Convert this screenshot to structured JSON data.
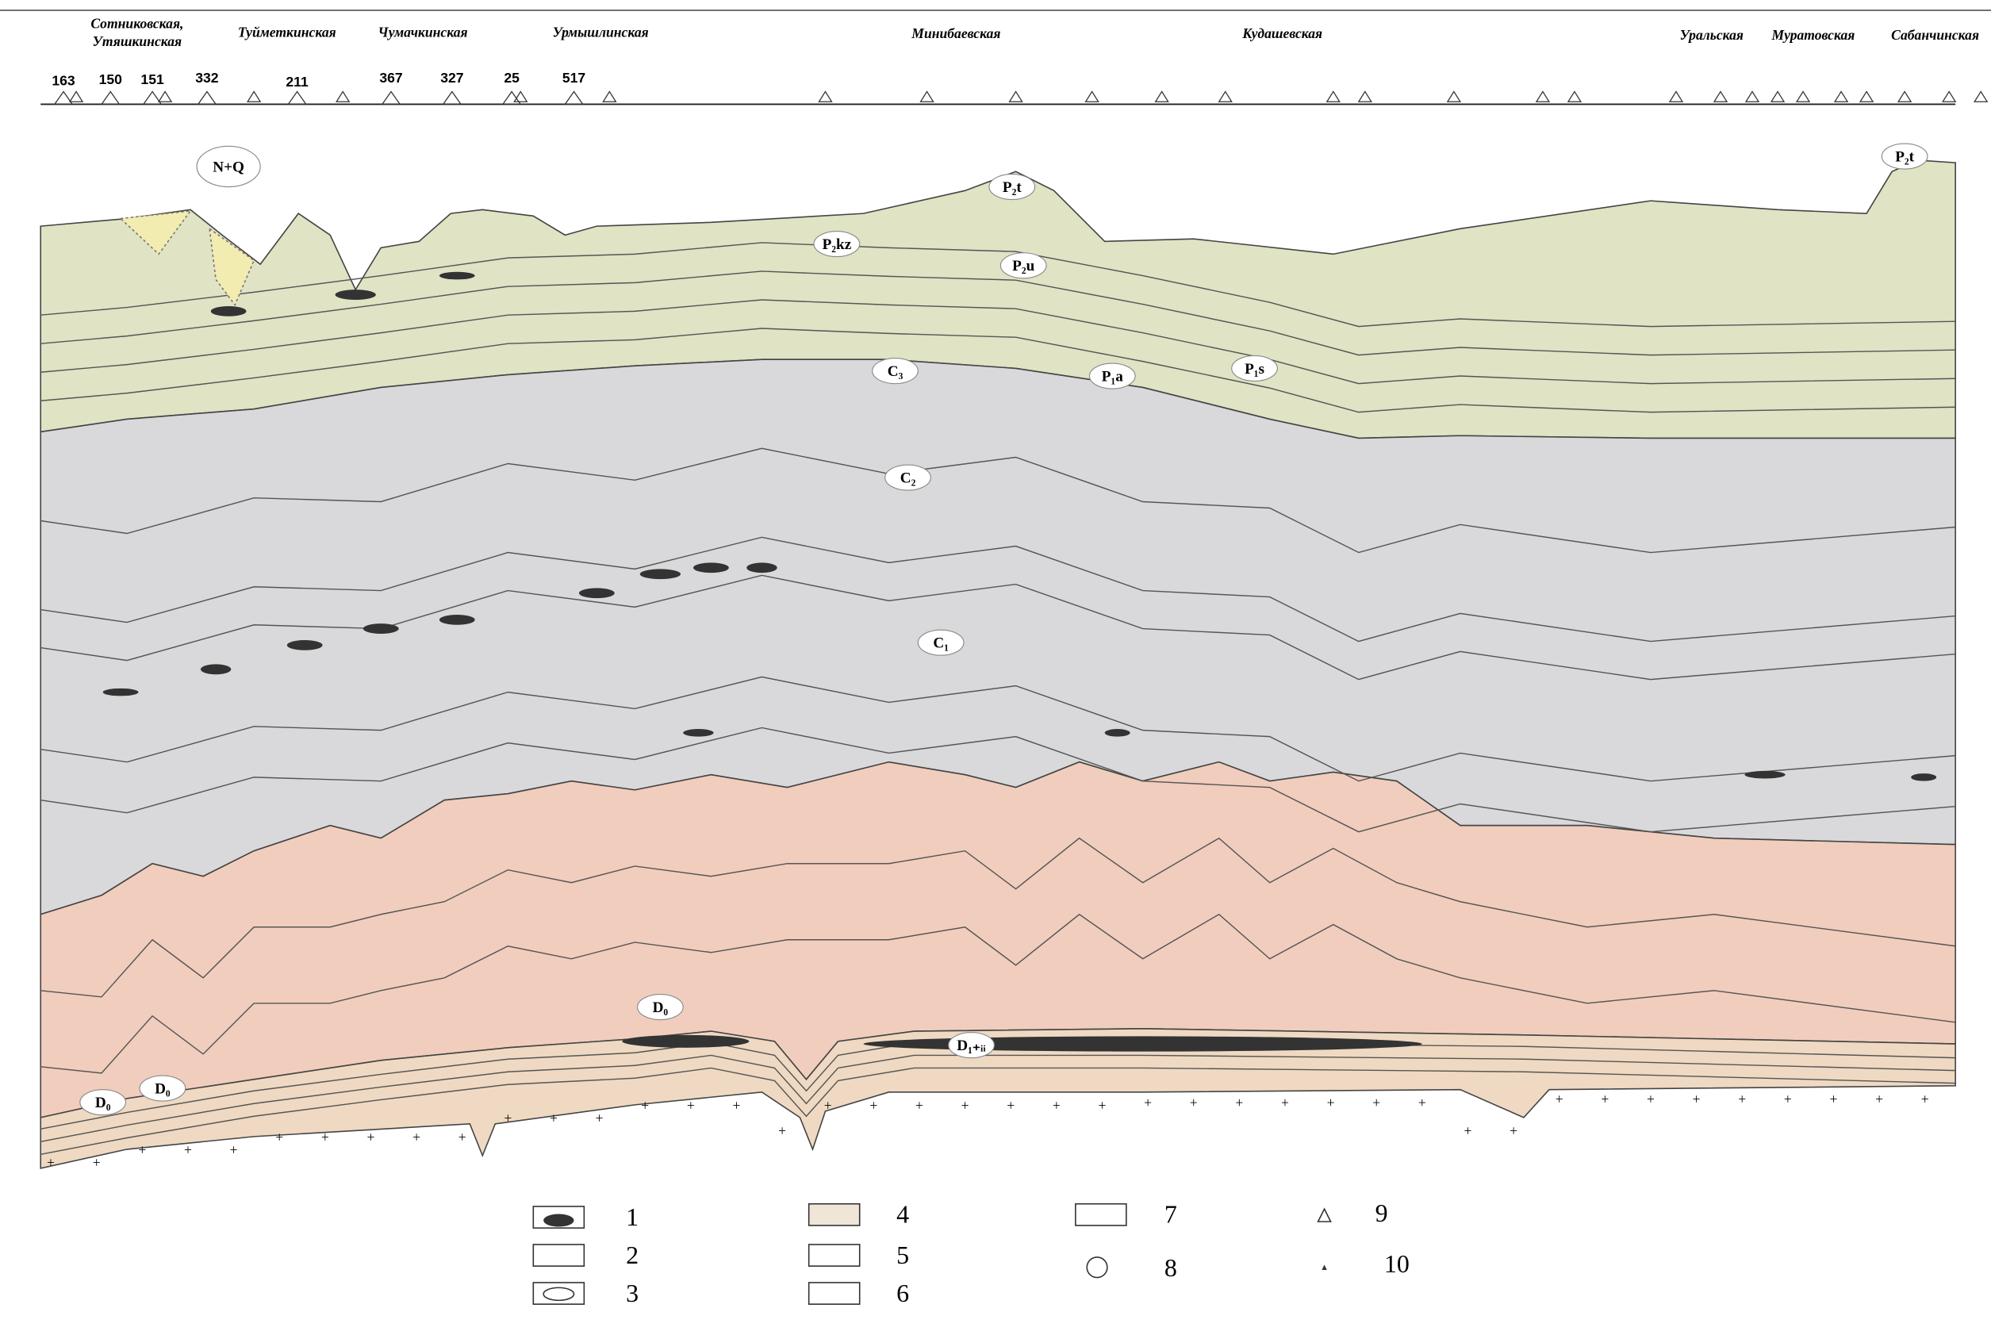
{
  "areas": [
    {
      "lines": [
        "Сотниковская,",
        "Утяшкинская"
      ]
    },
    {
      "lines": [
        "Туйметкинская"
      ]
    },
    {
      "lines": [
        "Чумачкинская"
      ]
    },
    {
      "lines": [
        "Урмышлинская"
      ]
    },
    {
      "lines": [
        "Минибаевская"
      ]
    },
    {
      "lines": [
        "Кудашевская"
      ]
    },
    {
      "lines": [
        "Уральская"
      ]
    },
    {
      "lines": [
        "Муратовская"
      ]
    },
    {
      "lines": [
        "Сабанчинская"
      ]
    }
  ],
  "wells": [
    "163",
    "150",
    "151",
    "332",
    "211",
    "367",
    "327",
    "25",
    "517"
  ],
  "layers": [
    "N+Q",
    "P₂t",
    "P₂kz",
    "P₂u",
    "C₃",
    "P₁a",
    "P₁s",
    "C₂",
    "C₁",
    "D₀",
    "D₁₊ᵢᵢ",
    "D₀",
    "D₀",
    "P₂t"
  ],
  "legend": [
    "1",
    "2",
    "3",
    "4",
    "5",
    "6",
    "7",
    "8",
    "9",
    "10"
  ]
}
